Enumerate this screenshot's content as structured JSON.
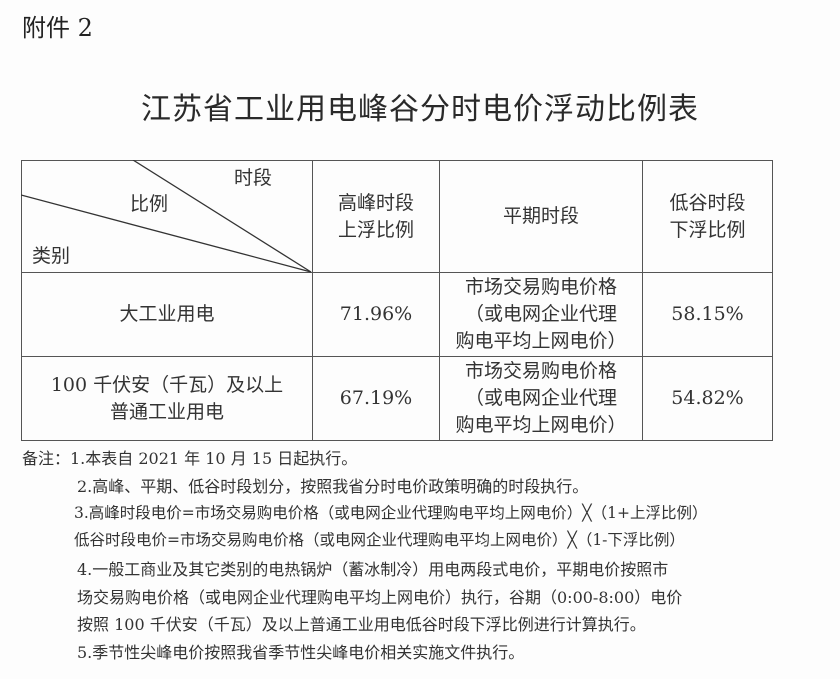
{
  "attachment": "附件 2",
  "title": "江苏省工业用电峰谷分时电价浮动比例表",
  "table": {
    "corner": {
      "period": "时段",
      "ratio": "比例",
      "category": "类别"
    },
    "headers": [
      [
        "高峰时段",
        "上浮比例"
      ],
      [
        "平期时段"
      ],
      [
        "低谷时段",
        "下浮比例"
      ]
    ],
    "rows": [
      {
        "category": [
          "大工业用电"
        ],
        "peak": "71.96%",
        "flat": [
          "市场交易购电价格",
          "（或电网企业代理",
          "购电平均上网电价）"
        ],
        "valley": "58.15%"
      },
      {
        "category": [
          "100 千伏安（千瓦）及以上",
          "普通工业用电"
        ],
        "peak": "67.19%",
        "flat": [
          "市场交易购电价格",
          "（或电网企业代理",
          "购电平均上网电价）"
        ],
        "valley": "54.82%"
      }
    ]
  },
  "notes": [
    "备注：1.本表自 2021 年 10 月 15 日起执行。",
    "2.高峰、平期、低谷时段划分，按照我省分时电价政策明确的时段执行。",
    "3.高峰时段电价=市场交易购电价格（或电网企业代理购电平均上网电价）╳（1+上浮比例）",
    "低谷时段电价=市场交易购电价格（或电网企业代理购电平均上网电价）╳（1-下浮比例）",
    "4.一般工商业及其它类别的电热锅炉（蓄冰制冷）用电两段式电价，平期电价按照市",
    "场交易购电价格（或电网企业代理购电平均上网电价）执行，谷期（0:00-8:00）电价",
    "按照 100 千伏安（千瓦）及以上普通工业用电低谷时段下浮比例进行计算执行。",
    "5.季节性尖峰电价按照我省季节性尖峰电价相关实施文件执行。"
  ]
}
